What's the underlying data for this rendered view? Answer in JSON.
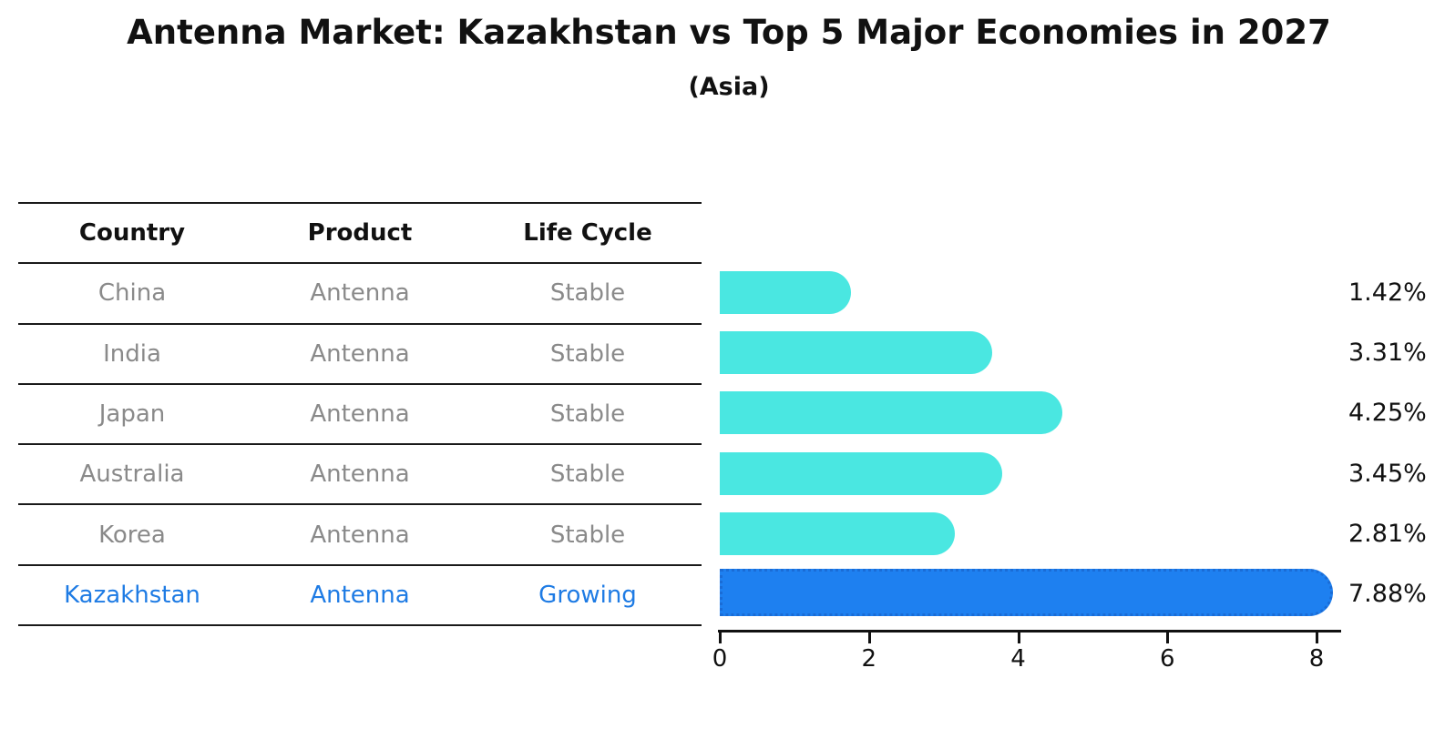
{
  "title": "Antenna Market: Kazakhstan vs Top 5 Major Economies in 2027",
  "subtitle": "(Asia)",
  "table": {
    "headers": [
      "Country",
      "Product",
      "Life Cycle"
    ],
    "rows": [
      {
        "country": "China",
        "product": "Antenna",
        "life_cycle": "Stable",
        "highlight": false
      },
      {
        "country": "India",
        "product": "Antenna",
        "life_cycle": "Stable",
        "highlight": false
      },
      {
        "country": "Japan",
        "product": "Antenna",
        "life_cycle": "Stable",
        "highlight": false
      },
      {
        "country": "Australia",
        "product": "Antenna",
        "life_cycle": "Stable",
        "highlight": false
      },
      {
        "country": "Korea",
        "product": "Antenna",
        "life_cycle": "Stable",
        "highlight": false
      },
      {
        "country": "Kazakhstan",
        "product": "Antenna",
        "life_cycle": "Growing",
        "highlight": true
      }
    ]
  },
  "chart_data": {
    "type": "bar",
    "orientation": "horizontal",
    "title": "Antenna Market: Kazakhstan vs Top 5 Major Economies in 2027",
    "subtitle": "(Asia)",
    "categories": [
      "China",
      "India",
      "Japan",
      "Australia",
      "Korea",
      "Kazakhstan"
    ],
    "values": [
      1.42,
      3.31,
      4.25,
      3.45,
      2.81,
      7.88
    ],
    "value_labels": [
      "1.42%",
      "3.31%",
      "4.25%",
      "3.45%",
      "2.81%",
      "7.88%"
    ],
    "highlight_index": 5,
    "x_ticks": [
      "0",
      "2",
      "4",
      "6",
      "8"
    ],
    "xlim": [
      0,
      8.3
    ],
    "grid": false,
    "legend": "none",
    "colors": {
      "bar_default": "#4AE7E1",
      "bar_highlight": "#1E80F0",
      "highlight_text": "#1e7be4",
      "row_text": "#8a8a8a",
      "axis_text": "#111111"
    }
  }
}
